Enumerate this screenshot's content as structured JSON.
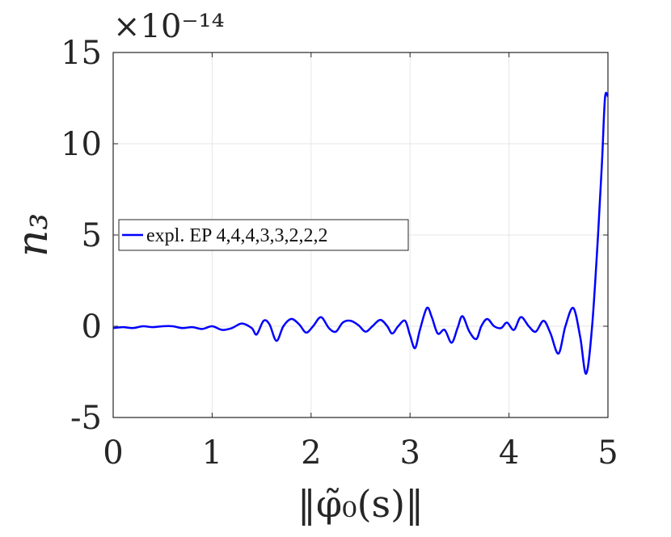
{
  "chart_data": {
    "type": "line",
    "xlabel": "‖φ̃₀(s)‖",
    "ylabel": "n₃",
    "y_scale_label": "×10⁻¹⁴",
    "xlim": [
      0,
      5
    ],
    "ylim": [
      -5,
      15
    ],
    "xticks": [
      0,
      1,
      2,
      3,
      4,
      5
    ],
    "yticks": [
      -5,
      0,
      5,
      10,
      15
    ],
    "xtick_labels": [
      "0",
      "1",
      "2",
      "3",
      "4",
      "5"
    ],
    "ytick_labels": [
      "-5",
      "0",
      "5",
      "10",
      "15"
    ],
    "grid": true,
    "legend_position": "center-left",
    "series": [
      {
        "name": "expl. EP 4,4,4,3,3,2,2,2",
        "color": "#0000ff",
        "x": [
          0.0,
          0.1,
          0.2,
          0.3,
          0.4,
          0.5,
          0.6,
          0.7,
          0.8,
          0.9,
          1.0,
          1.1,
          1.2,
          1.3,
          1.4,
          1.45,
          1.52,
          1.58,
          1.65,
          1.72,
          1.8,
          1.88,
          1.95,
          2.02,
          2.1,
          2.18,
          2.25,
          2.32,
          2.4,
          2.48,
          2.55,
          2.62,
          2.7,
          2.77,
          2.82,
          2.88,
          2.95,
          3.0,
          3.05,
          3.1,
          3.17,
          3.22,
          3.28,
          3.35,
          3.42,
          3.48,
          3.53,
          3.6,
          3.67,
          3.72,
          3.78,
          3.85,
          3.92,
          3.98,
          4.05,
          4.12,
          4.2,
          4.27,
          4.35,
          4.42,
          4.5,
          4.57,
          4.65,
          4.72,
          4.78,
          4.84,
          4.9,
          4.94,
          4.97,
          5.0
        ],
        "y": [
          -0.1,
          -0.05,
          -0.1,
          0.0,
          -0.05,
          0.0,
          0.0,
          -0.1,
          -0.05,
          -0.15,
          0.0,
          -0.2,
          -0.1,
          0.15,
          -0.1,
          -0.45,
          0.3,
          0.1,
          -0.8,
          0.0,
          0.4,
          0.1,
          -0.35,
          0.0,
          0.5,
          -0.1,
          -0.3,
          0.2,
          0.3,
          0.05,
          -0.3,
          0.0,
          0.35,
          0.0,
          -0.4,
          0.0,
          0.3,
          -0.5,
          -1.2,
          -0.2,
          1.0,
          0.5,
          -0.4,
          -0.2,
          -0.9,
          -0.1,
          0.55,
          -0.3,
          -0.7,
          0.0,
          0.4,
          0.0,
          -0.1,
          0.2,
          -0.2,
          0.5,
          0.0,
          -0.3,
          0.3,
          -0.4,
          -1.5,
          0.0,
          1.0,
          -0.6,
          -2.6,
          0.0,
          5.0,
          9.0,
          12.5,
          12.6
        ]
      }
    ]
  }
}
